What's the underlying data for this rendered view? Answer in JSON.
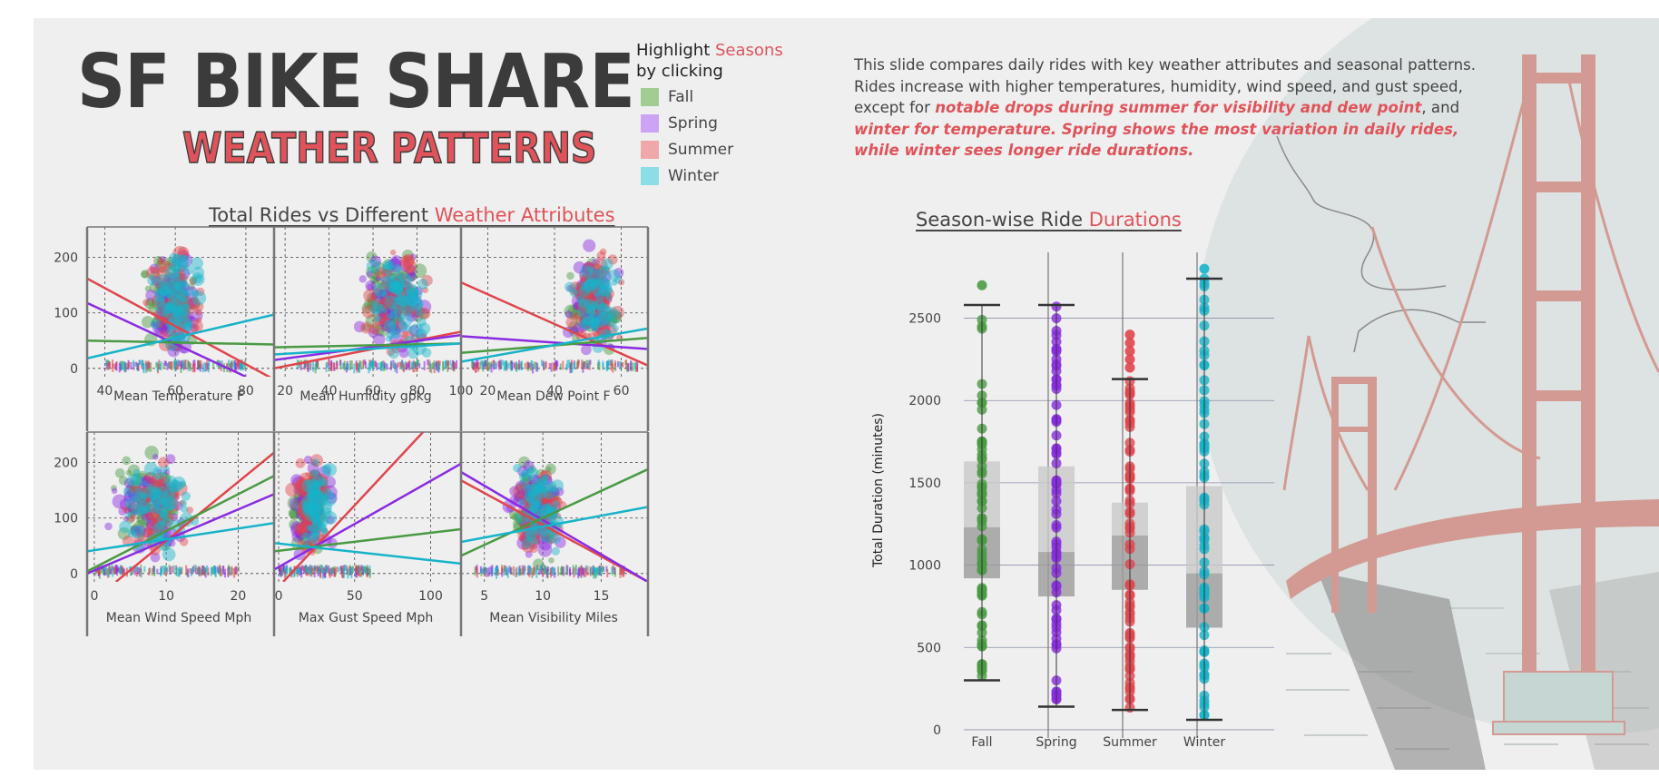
{
  "header": {
    "title": "SF BIKE SHARE",
    "subtitle": "WEATHER PATTERNS"
  },
  "legend": {
    "title_prefix": "Highlight ",
    "title_accent": "Seasons",
    "title_suffix": "by clicking",
    "items": [
      {
        "label": "Fall",
        "color": "#a3cc95"
      },
      {
        "label": "Spring",
        "color": "#cda3f5"
      },
      {
        "label": "Summer",
        "color": "#f0a7a9"
      },
      {
        "label": "Winter",
        "color": "#8ddde6"
      }
    ]
  },
  "description": {
    "part1": "This slide compares daily rides with key weather attributes and seasonal patterns. Rides increase with higher temperatures, humidity, wind speed, and gust speed, except for ",
    "highlight1": "notable drops during summer for visibility and dew point",
    "part2": ", and ",
    "highlight2": "winter for temperature. Spring shows the most variation in daily rides, while winter sees longer ride durations."
  },
  "scatter_section": {
    "title_prefix": "Total Rides vs Different ",
    "title_accent": "Weather Attributes"
  },
  "box_section": {
    "title_prefix": "Season-wise Ride ",
    "title_accent": "Durations"
  },
  "season_colors": {
    "Fall": "#4a9a44",
    "Spring": "#8a2be2",
    "Summer": "#e0454c",
    "Winter": "#17b3c9"
  },
  "chart_data": [
    {
      "type": "scatter",
      "xlabel": "Mean Temperature F",
      "ylabel": "",
      "xlim": [
        35,
        88
      ],
      "ylim": [
        -15,
        255
      ],
      "xticks": [
        40,
        60,
        80
      ],
      "yticks": [
        0,
        100,
        200
      ],
      "grid": true,
      "trend_lines": [
        {
          "season": "Summer",
          "x": [
            35,
            88
          ],
          "y": [
            162,
            -20
          ]
        },
        {
          "season": "Spring",
          "x": [
            35,
            80
          ],
          "y": [
            118,
            -15
          ]
        },
        {
          "season": "Fall",
          "x": [
            35,
            88
          ],
          "y": [
            50,
            43
          ]
        },
        {
          "season": "Winter",
          "x": [
            35,
            88
          ],
          "y": [
            18,
            97
          ]
        }
      ]
    },
    {
      "type": "scatter",
      "xlabel": "Mean Humidity gpkg",
      "ylabel": "",
      "xlim": [
        15,
        100
      ],
      "ylim": [
        -15,
        255
      ],
      "xticks": [
        20,
        40,
        60,
        80,
        100
      ],
      "yticks": [
        0,
        100,
        200
      ],
      "grid": true,
      "trend_lines": [
        {
          "season": "Summer",
          "x": [
            15,
            100
          ],
          "y": [
            0,
            66
          ]
        },
        {
          "season": "Spring",
          "x": [
            15,
            100
          ],
          "y": [
            15,
            60
          ]
        },
        {
          "season": "Fall",
          "x": [
            15,
            100
          ],
          "y": [
            38,
            45
          ]
        },
        {
          "season": "Winter",
          "x": [
            15,
            100
          ],
          "y": [
            25,
            45
          ]
        }
      ]
    },
    {
      "type": "scatter",
      "xlabel": "Mean Dew Point F",
      "ylabel": "",
      "xlim": [
        12,
        68
      ],
      "ylim": [
        -15,
        255
      ],
      "xticks": [
        20,
        40,
        60
      ],
      "yticks": [
        0,
        100,
        200
      ],
      "grid": true,
      "trend_lines": [
        {
          "season": "Summer",
          "x": [
            12,
            68
          ],
          "y": [
            155,
            5
          ]
        },
        {
          "season": "Spring",
          "x": [
            12,
            68
          ],
          "y": [
            58,
            35
          ]
        },
        {
          "season": "Fall",
          "x": [
            12,
            68
          ],
          "y": [
            28,
            55
          ]
        },
        {
          "season": "Winter",
          "x": [
            12,
            68
          ],
          "y": [
            12,
            72
          ]
        }
      ]
    },
    {
      "type": "scatter",
      "xlabel": "Mean Wind Speed Mph",
      "ylabel": "",
      "xlim": [
        -1,
        25
      ],
      "ylim": [
        -15,
        255
      ],
      "xticks": [
        0,
        10,
        20
      ],
      "yticks": [
        0,
        100,
        200
      ],
      "grid": true,
      "trend_lines": [
        {
          "season": "Summer",
          "x": [
            3,
            25
          ],
          "y": [
            -15,
            218
          ]
        },
        {
          "season": "Spring",
          "x": [
            -1,
            25
          ],
          "y": [
            0,
            143
          ]
        },
        {
          "season": "Fall",
          "x": [
            -1,
            25
          ],
          "y": [
            4,
            176
          ]
        },
        {
          "season": "Winter",
          "x": [
            -1,
            25
          ],
          "y": [
            40,
            91
          ]
        }
      ]
    },
    {
      "type": "scatter",
      "xlabel": "Max Gust Speed Mph",
      "ylabel": "",
      "xlim": [
        -3,
        120
      ],
      "ylim": [
        -15,
        255
      ],
      "xticks": [
        0,
        50,
        100
      ],
      "yticks": [
        0,
        100,
        200
      ],
      "grid": true,
      "trend_lines": [
        {
          "season": "Summer",
          "x": [
            3,
            95
          ],
          "y": [
            -15,
            255
          ]
        },
        {
          "season": "Spring",
          "x": [
            -3,
            120
          ],
          "y": [
            7,
            198
          ]
        },
        {
          "season": "Fall",
          "x": [
            -3,
            120
          ],
          "y": [
            40,
            80
          ]
        },
        {
          "season": "Winter",
          "x": [
            -3,
            120
          ],
          "y": [
            55,
            18
          ]
        }
      ]
    },
    {
      "type": "scatter",
      "xlabel": "Mean Visibility Miles",
      "ylabel": "",
      "xlim": [
        3,
        19
      ],
      "ylim": [
        -15,
        255
      ],
      "xticks": [
        5,
        10,
        15
      ],
      "yticks": [
        0,
        100,
        200
      ],
      "grid": true,
      "trend_lines": [
        {
          "season": "Summer",
          "x": [
            3,
            19
          ],
          "y": [
            168,
            -15
          ]
        },
        {
          "season": "Spring",
          "x": [
            3,
            19
          ],
          "y": [
            183,
            -15
          ]
        },
        {
          "season": "Fall",
          "x": [
            3,
            19
          ],
          "y": [
            32,
            188
          ]
        },
        {
          "season": "Winter",
          "x": [
            3,
            19
          ],
          "y": [
            57,
            120
          ]
        }
      ]
    },
    {
      "type": "box",
      "xlabel": "",
      "ylabel": "Total Duration (minutes)",
      "ylim": [
        -50,
        2900
      ],
      "yticks": [
        0,
        500,
        1000,
        1500,
        2000,
        2500
      ],
      "categories": [
        "Fall",
        "Spring",
        "Summer",
        "Winter"
      ],
      "boxes": [
        {
          "name": "Fall",
          "min": 300,
          "q1": 920,
          "median": 1230,
          "q3": 1630,
          "max": 2580,
          "outliers": [
            2700
          ]
        },
        {
          "name": "Spring",
          "min": 140,
          "q1": 810,
          "median": 1080,
          "q3": 1600,
          "max": 2580,
          "outliers": []
        },
        {
          "name": "Summer",
          "min": 120,
          "q1": 850,
          "median": 1180,
          "q3": 1380,
          "max": 2130,
          "outliers": [
            2200,
            2250,
            2300,
            2350,
            2400
          ]
        },
        {
          "name": "Winter",
          "min": 60,
          "q1": 620,
          "median": 950,
          "q3": 1480,
          "max": 2740,
          "outliers": [
            2800
          ]
        }
      ]
    }
  ]
}
